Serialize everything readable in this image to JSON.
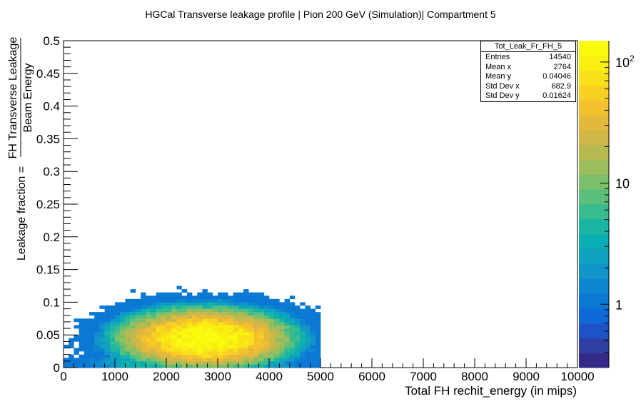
{
  "chart_data": {
    "type": "heatmap",
    "title": "HGCal Transverse leakage profile | Pion 200 GeV (Simulation)| Compartment 5",
    "xlabel": "Total FH rechit_energy (in mips)",
    "ylabel_prefix": "Leakage fraction = ",
    "ylabel_num": "FH Transverse Leakage",
    "ylabel_den": "Beam Energy",
    "xlim": [
      0,
      10000
    ],
    "ylim": [
      0,
      0.5
    ],
    "x_ticks": [
      "0",
      "1000",
      "2000",
      "3000",
      "4000",
      "5000",
      "6000",
      "7000",
      "8000",
      "9000",
      "10000"
    ],
    "y_ticks": [
      "0",
      "0.05",
      "0.1",
      "0.15",
      "0.2",
      "0.25",
      "0.3",
      "0.35",
      "0.4",
      "0.45",
      "0.5"
    ],
    "z_scale": "log",
    "z_range": [
      0.3,
      150
    ],
    "z_ticks": [
      {
        "value": 1,
        "label": "1"
      },
      {
        "value": 10,
        "label": "10"
      },
      {
        "value": 100,
        "label": "10",
        "sup": "2"
      }
    ],
    "colormap": [
      "#352a87",
      "#2f3fa3",
      "#1e53c7",
      "#0f68d8",
      "#0b78d4",
      "#0d86cf",
      "#1195c9",
      "#0fa2c0",
      "#0aadb4",
      "#1ab6a3",
      "#38bc8f",
      "#5abf7b",
      "#7cbf6a",
      "#9cbd5c",
      "#b8ba51",
      "#d0b747",
      "#e4b93b",
      "#f3c12d",
      "#f8d022",
      "#f9e11a",
      "#f9f00f",
      "#f9fb0e"
    ],
    "bin_width": [
      100,
      0.005
    ],
    "core": {
      "x": 2750,
      "y": 0.045,
      "sigma_x": 700,
      "sigma_y": 0.019,
      "peak": 150
    },
    "stats": {
      "name": "Tot_Leak_Fr_FH_5",
      "rows": [
        {
          "label": "Entries",
          "value": "14540"
        },
        {
          "label": "Mean x",
          "value": "2764"
        },
        {
          "label": "Mean y",
          "value": "0.04046"
        },
        {
          "label": "Std Dev x",
          "value": "682.9"
        },
        {
          "label": "Std Dev y",
          "value": "0.01624"
        }
      ]
    }
  }
}
